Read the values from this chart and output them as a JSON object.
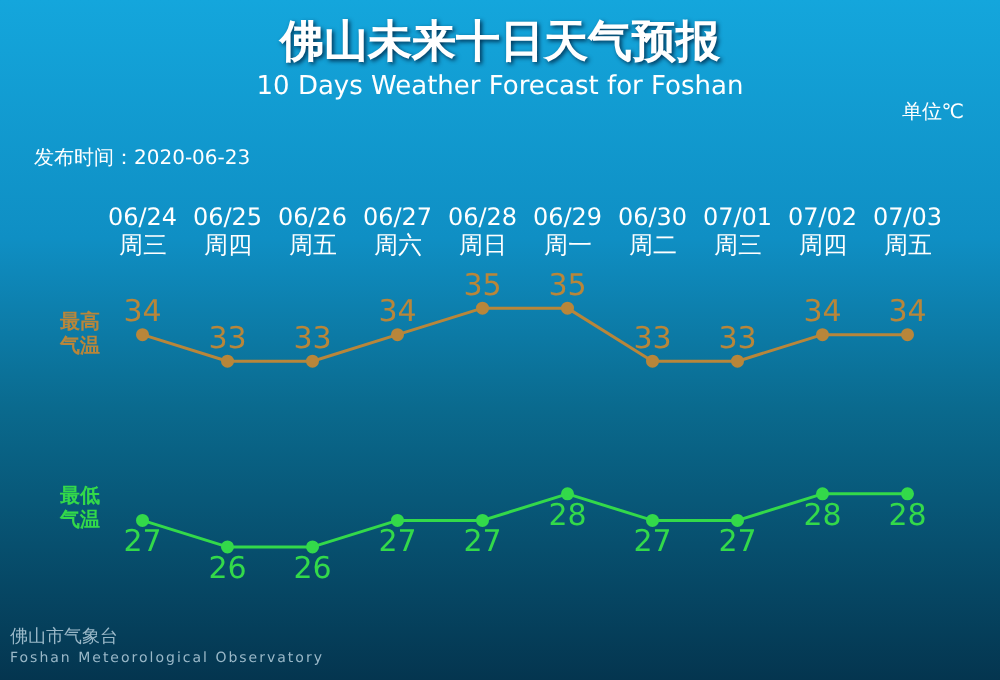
{
  "chart_data": {
    "type": "line",
    "title": "佛山未来十日天气预报",
    "subtitle": "10 Days Weather Forecast for Foshan",
    "categories": [
      "06/24 周三",
      "06/25 周四",
      "06/26 周五",
      "06/27 周六",
      "06/28 周日",
      "06/29 周一",
      "06/30 周二",
      "07/01 周三",
      "07/02 周四",
      "07/03 周五"
    ],
    "series": [
      {
        "name": "最高气温",
        "color": "#b8863a",
        "values": [
          34,
          33,
          33,
          34,
          35,
          35,
          33,
          33,
          34,
          34
        ]
      },
      {
        "name": "最低气温",
        "color": "#33d94a",
        "values": [
          27,
          26,
          26,
          27,
          27,
          28,
          27,
          27,
          28,
          28
        ]
      }
    ],
    "data_labels": true,
    "legend": false,
    "grid": false,
    "marker": "circle",
    "line_style": "solid",
    "tick_labels": "x",
    "annotations": [
      "单位℃",
      "发布时间：2020-06-23",
      "佛山市气象台",
      "Foshan Meteorological Observatory"
    ]
  }
}
